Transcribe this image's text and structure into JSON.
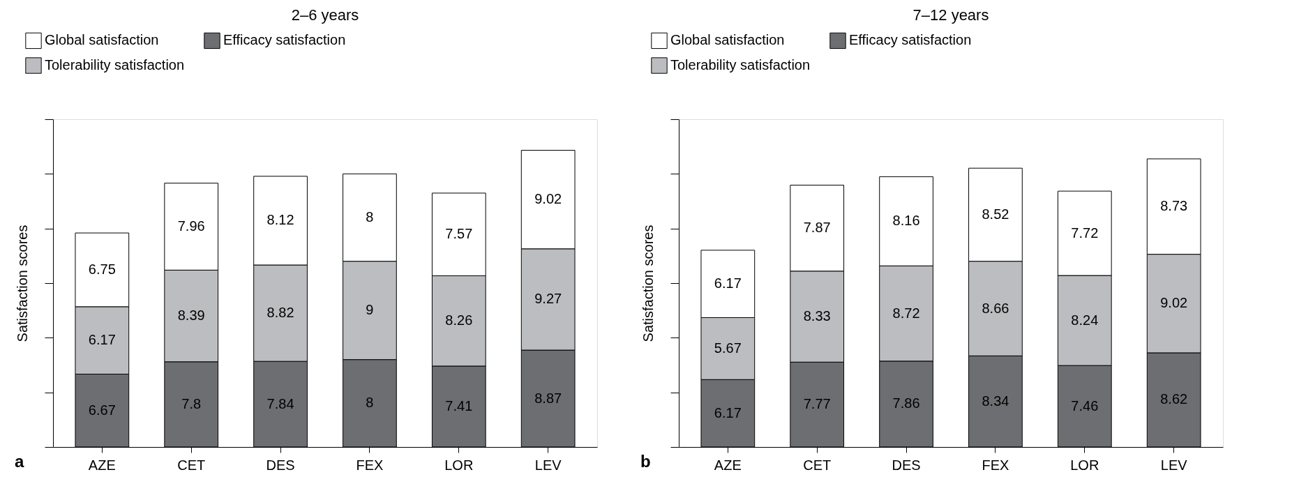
{
  "chart_data": [
    {
      "type": "bar",
      "title": "2–6 years",
      "ylabel": "Satisfaction scores",
      "categories": [
        "AZE",
        "CET",
        "DES",
        "FEX",
        "LOR",
        "LEV"
      ],
      "stacked": true,
      "data_labels": true,
      "legend": "top left",
      "tick_labels": "x",
      "annotations": [
        "a"
      ],
      "ylim": [
        0,
        30
      ],
      "yticks": [
        {
          "value": 0,
          "label": null
        },
        {
          "value": 5,
          "label": null
        },
        {
          "value": 10,
          "label": null
        },
        {
          "value": 15,
          "label": null
        },
        {
          "value": 20,
          "label": null
        },
        {
          "value": 25,
          "label": null
        },
        {
          "value": 30,
          "label": null
        }
      ],
      "series": [
        {
          "name": "Efficacy satisfaction",
          "color": "#6d6e71",
          "values": [
            6.67,
            7.8,
            7.84,
            8,
            7.41,
            8.87
          ]
        },
        {
          "name": "Tolerability satisfaction",
          "color": "#bcbdc0",
          "values": [
            6.17,
            8.39,
            8.82,
            9,
            8.26,
            9.27
          ]
        },
        {
          "name": "Global satisfaction",
          "color": "#ffffff",
          "values": [
            6.75,
            7.96,
            8.12,
            8,
            7.57,
            9.02
          ]
        }
      ]
    },
    {
      "type": "bar",
      "title": "7–12 years",
      "ylabel": "Satisfaction scores",
      "categories": [
        "AZE",
        "CET",
        "DES",
        "FEX",
        "LOR",
        "LEV"
      ],
      "stacked": true,
      "data_labels": true,
      "legend": "top left",
      "tick_labels": "x",
      "annotations": [
        "b"
      ],
      "ylim": [
        0,
        30
      ],
      "yticks": [
        {
          "value": 0,
          "label": null
        },
        {
          "value": 5,
          "label": null
        },
        {
          "value": 10,
          "label": null
        },
        {
          "value": 15,
          "label": null
        },
        {
          "value": 20,
          "label": null
        },
        {
          "value": 25,
          "label": null
        },
        {
          "value": 30,
          "label": null
        }
      ],
      "series": [
        {
          "name": "Efficacy satisfaction",
          "color": "#6d6e71",
          "values": [
            6.17,
            7.77,
            7.86,
            8.34,
            7.46,
            8.62
          ]
        },
        {
          "name": "Tolerability satisfaction",
          "color": "#bcbdc0",
          "values": [
            5.67,
            8.33,
            8.72,
            8.66,
            8.24,
            9.02
          ]
        },
        {
          "name": "Global satisfaction",
          "color": "#ffffff",
          "values": [
            6.17,
            7.87,
            8.16,
            8.52,
            7.72,
            8.73
          ]
        }
      ]
    }
  ]
}
